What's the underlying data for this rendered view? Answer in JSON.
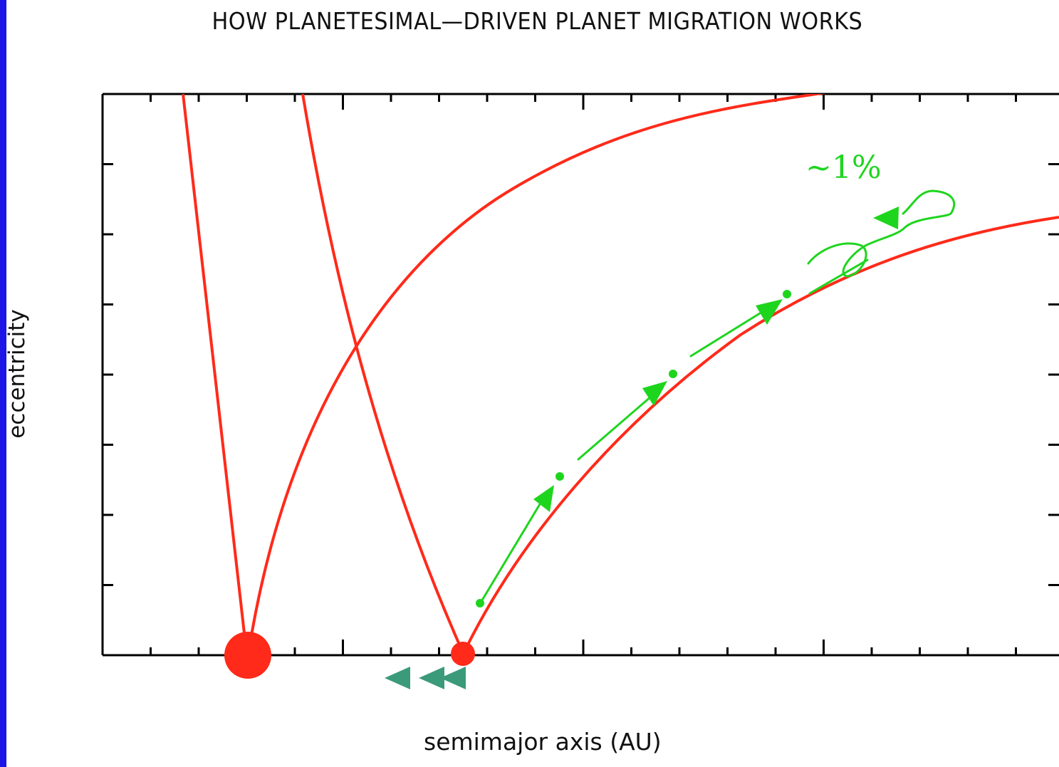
{
  "title": "HOW PLANETESIMAL—DRIVEN PLANET MIGRATION WORKS",
  "xlabel": "semimajor axis (AU)",
  "ylabel": "eccentricity",
  "annotation": "~1%",
  "colors": {
    "background_frame": "#1c17e6",
    "curves": "#ff2a1a",
    "planetesimal_path": "#1ed51e",
    "migration_arrows": "#3a9a7a",
    "axes": "#000000"
  },
  "elements": {
    "inner_planet": "large red circle",
    "outer_planet": "small red circle",
    "migration_direction": "inward"
  }
}
